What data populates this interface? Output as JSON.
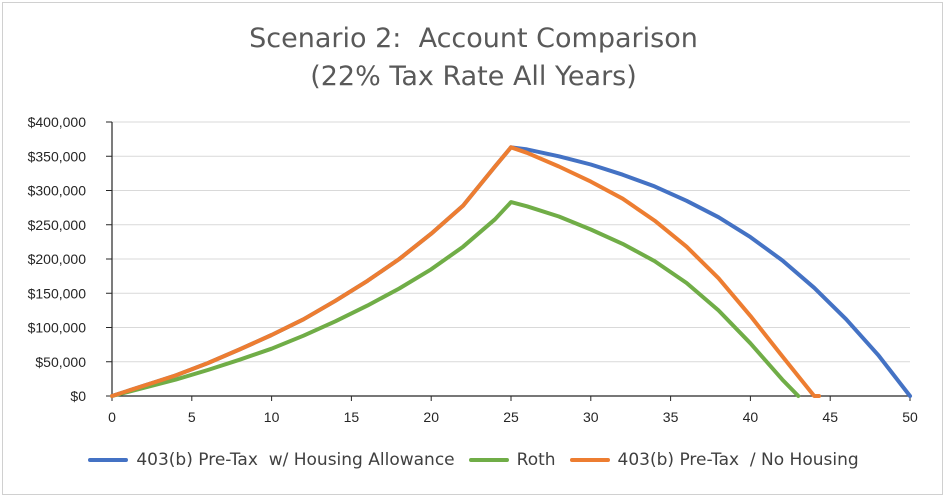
{
  "chart_data": {
    "type": "line",
    "title": "Scenario 2:  Account Comparison",
    "subtitle": "(22% Tax Rate All Years)",
    "xlabel": "",
    "ylabel": "",
    "xlim": [
      0,
      50
    ],
    "ylim": [
      0,
      400000
    ],
    "x_ticks": [
      "0",
      "5",
      "10",
      "15",
      "20",
      "25",
      "30",
      "35",
      "40",
      "45",
      "50"
    ],
    "y_ticks": [
      "$0",
      "$50,000",
      "$100,000",
      "$150,000",
      "$200,000",
      "$250,000",
      "$300,000",
      "$350,000",
      "$400,000"
    ],
    "grid": "horizontal",
    "legend_position": "bottom",
    "series": [
      {
        "name": "403(b) Pre-Tax  w/ Housing Allowance",
        "color": "#4472c4",
        "x": [
          0,
          2,
          4,
          6,
          8,
          10,
          12,
          14,
          16,
          18,
          20,
          22,
          24,
          25,
          26,
          28,
          30,
          32,
          34,
          36,
          38,
          40,
          42,
          44,
          46,
          48,
          50
        ],
        "y": [
          0,
          15000,
          30000,
          48000,
          68000,
          89000,
          112000,
          139000,
          168000,
          200000,
          237000,
          278000,
          335000,
          363000,
          360000,
          350000,
          338000,
          323000,
          306000,
          285000,
          261000,
          232000,
          198000,
          158000,
          112000,
          60000,
          0
        ]
      },
      {
        "name": "Roth",
        "color": "#70ad47",
        "x": [
          0,
          2,
          4,
          6,
          8,
          10,
          12,
          14,
          16,
          18,
          20,
          22,
          24,
          25,
          26,
          28,
          30,
          32,
          34,
          36,
          38,
          40,
          42,
          43
        ],
        "y": [
          0,
          12000,
          24000,
          38000,
          53000,
          69000,
          88000,
          109000,
          132000,
          157000,
          185000,
          218000,
          258000,
          283000,
          277000,
          262000,
          243000,
          222000,
          197000,
          165000,
          125000,
          77000,
          24000,
          0
        ]
      },
      {
        "name": "403(b) Pre-Tax  / No Housing",
        "color": "#ed7d31",
        "x": [
          0,
          2,
          4,
          6,
          8,
          10,
          12,
          14,
          16,
          18,
          20,
          22,
          24,
          25,
          26,
          28,
          30,
          32,
          34,
          36,
          38,
          40,
          42,
          44,
          44.3
        ],
        "y": [
          0,
          15000,
          30000,
          48000,
          68000,
          89000,
          112000,
          139000,
          168000,
          200000,
          237000,
          278000,
          335000,
          363000,
          355000,
          335000,
          313000,
          288000,
          256000,
          218000,
          172000,
          117000,
          58000,
          0,
          0
        ]
      }
    ]
  }
}
